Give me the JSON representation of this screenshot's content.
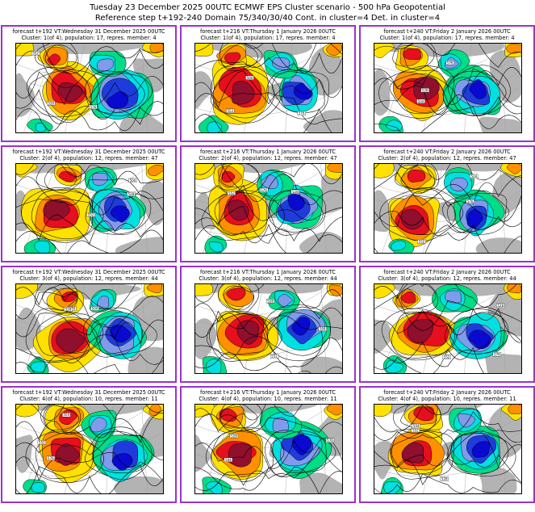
{
  "title": {
    "line1": "Tuesday 23 December 2025 00UTC ECMWF EPS Cluster scenario - 500 hPa Geopotential",
    "line2": "Reference step t+192-240 Domain 75/340/30/40 Cont. in cluster=4 Det. in cluster=4"
  },
  "panels": [
    {
      "line1": "forecast t+192 VT:Wednesday 31 December 2025 00UTC",
      "line2": "Cluster: 1(of 4), population: 17, repres. member: 4"
    },
    {
      "line1": "forecast t+216 VT:Thursday 1 January 2026 00UTC",
      "line2": "Cluster: 1(of 4), population: 17, repres. member: 4"
    },
    {
      "line1": "forecast t+240 VT:Friday 2 January 2026 00UTC",
      "line2": "Cluster: 1(of 4), population: 17, repres. member: 4"
    },
    {
      "line1": "forecast t+192 VT:Wednesday 31 December 2025 00UTC",
      "line2": "Cluster: 2(of 4), population: 12, repres. member: 47"
    },
    {
      "line1": "forecast t+216 VT:Thursday 1 January 2026 00UTC",
      "line2": "Cluster: 2(of 4), population: 12, repres. member: 47"
    },
    {
      "line1": "forecast t+240 VT:Friday 2 January 2026 00UTC",
      "line2": "Cluster: 2(of 4), population: 12, repres. member: 47"
    },
    {
      "line1": "forecast t+192 VT:Wednesday 31 December 2025 00UTC",
      "line2": "Cluster: 3(of 4), population: 12, repres. member: 44"
    },
    {
      "line1": "forecast t+216 VT:Thursday 1 January 2026 00UTC",
      "line2": "Cluster: 3(of 4), population: 12, repres. member: 44"
    },
    {
      "line1": "forecast t+240 VT:Friday 2 January 2026 00UTC",
      "line2": "Cluster: 3(of 4), population: 12, repres. member: 44"
    },
    {
      "line1": "forecast t+192 VT:Wednesday 31 December 2025 00UTC",
      "line2": "Cluster: 4(of 4), population: 10, repres. member: 11"
    },
    {
      "line1": "forecast t+216 VT:Thursday 1 January 2026 00UTC",
      "line2": "Cluster: 4(of 4), population: 10, repres. member: 11"
    },
    {
      "line1": "forecast t+240 VT:Friday 2 January 2026 00UTC",
      "line2": "Cluster: 4(of 4), population: 10, repres. member: 11"
    }
  ],
  "palette": {
    "panel_border": "#9a32cd",
    "gray": "#b3b3b3",
    "graticule": "#9c9c9c",
    "yellow": "#ffe100",
    "orange": "#ff9000",
    "red": "#e60f1e",
    "maroon": "#8f0f2d",
    "green": "#00dc87",
    "cyan": "#00e0e0",
    "lightblue": "#7f9bea",
    "blue": "#1e3cdc",
    "darkblue": "#0909cf",
    "contour": "#000000"
  },
  "chart_data": {
    "type": "heatmap",
    "title": "Tuesday 23 December 2025 00UTC ECMWF EPS Cluster scenario - 500 hPa Geopotential",
    "subtitle": "Reference step t+192-240 Domain 75/340/30/40 Cont. in cluster=4 Det. in cluster=4",
    "base_time": "Tuesday 23 December 2025 00UTC",
    "parameter": "500 hPa Geopotential",
    "reference_step": "t+192-240",
    "domain": "75/340/30/40",
    "cont_in_cluster": 4,
    "det_in_cluster": 4,
    "grid": {
      "rows": 4,
      "cols": 3
    },
    "columns": [
      {
        "step": "t+192",
        "valid_time": "Wednesday 31 December 2025 00UTC"
      },
      {
        "step": "t+216",
        "valid_time": "Thursday 1 January 2026 00UTC"
      },
      {
        "step": "t+240",
        "valid_time": "Friday 2 January 2026 00UTC"
      }
    ],
    "rows": [
      {
        "cluster": "1(of 4)",
        "population": 17,
        "repres_member": 4
      },
      {
        "cluster": "2(of 4)",
        "population": 12,
        "repres_member": 47
      },
      {
        "cluster": "3(of 4)",
        "population": 12,
        "repres_member": 44
      },
      {
        "cluster": "4(of 4)",
        "population": 10,
        "repres_member": 11
      }
    ],
    "contour_labels_dam": [
      "528",
      "552",
      "576",
      "504"
    ],
    "legend_position": "none",
    "notes": "Each panel shows 500 hPa geopotential height contours (dam) with anomaly shading: warm/positive = yellow-orange-red-maroon, cold/negative = green-cyan-blue-darkblue, gray = neutral"
  }
}
